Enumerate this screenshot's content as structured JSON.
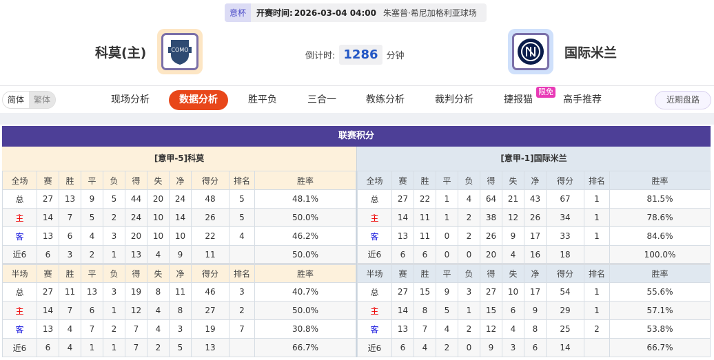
{
  "header": {
    "league": "意杯",
    "time_label": "开赛时间:",
    "time": "2026-03-04 04:00",
    "venue": "朱塞普·希尼加格利亚球场"
  },
  "home": {
    "name": "科莫(主)",
    "logo_text": "COMO",
    "accent": "#fde6c4"
  },
  "away": {
    "name": "国际米兰",
    "accent": "#cfe0fb"
  },
  "countdown": {
    "label": "倒计时:",
    "value": "1286",
    "unit": "分钟"
  },
  "nav": {
    "lang": [
      "简体",
      "繁体"
    ],
    "items": [
      "现场分析",
      "数据分析",
      "胜平负",
      "三合一",
      "教练分析",
      "裁判分析",
      "捷报猫",
      "高手推荐"
    ],
    "active": 1,
    "badge": "限免",
    "recent": "近期盘路"
  },
  "table": {
    "title": "联赛积分",
    "header_full": [
      "全场",
      "赛",
      "胜",
      "平",
      "负",
      "得",
      "失",
      "净",
      "得分",
      "排名",
      "胜率"
    ],
    "header_half": [
      "半场",
      "赛",
      "胜",
      "平",
      "负",
      "得",
      "失",
      "净",
      "得分",
      "排名",
      "胜率"
    ],
    "home": {
      "label": "[意甲-5]科莫",
      "full": [
        [
          "总",
          "27",
          "13",
          "9",
          "5",
          "44",
          "20",
          "24",
          "48",
          "5",
          "48.1%"
        ],
        [
          "主",
          "14",
          "7",
          "5",
          "2",
          "24",
          "10",
          "14",
          "26",
          "5",
          "50.0%"
        ],
        [
          "客",
          "13",
          "6",
          "4",
          "3",
          "20",
          "10",
          "10",
          "22",
          "4",
          "46.2%"
        ],
        [
          "近6",
          "6",
          "3",
          "2",
          "1",
          "13",
          "4",
          "9",
          "11",
          "",
          "50.0%"
        ]
      ],
      "half": [
        [
          "总",
          "27",
          "11",
          "13",
          "3",
          "19",
          "8",
          "11",
          "46",
          "3",
          "40.7%"
        ],
        [
          "主",
          "14",
          "7",
          "6",
          "1",
          "12",
          "4",
          "8",
          "27",
          "2",
          "50.0%"
        ],
        [
          "客",
          "13",
          "4",
          "7",
          "2",
          "7",
          "4",
          "3",
          "19",
          "7",
          "30.8%"
        ],
        [
          "近6",
          "6",
          "4",
          "1",
          "1",
          "7",
          "2",
          "5",
          "13",
          "",
          "66.7%"
        ]
      ]
    },
    "away": {
      "label": "[意甲-1]国际米兰",
      "full": [
        [
          "总",
          "27",
          "22",
          "1",
          "4",
          "64",
          "21",
          "43",
          "67",
          "1",
          "81.5%"
        ],
        [
          "主",
          "14",
          "11",
          "1",
          "2",
          "38",
          "12",
          "26",
          "34",
          "1",
          "78.6%"
        ],
        [
          "客",
          "13",
          "11",
          "0",
          "2",
          "26",
          "9",
          "17",
          "33",
          "1",
          "84.6%"
        ],
        [
          "近6",
          "6",
          "6",
          "0",
          "0",
          "20",
          "4",
          "16",
          "18",
          "",
          "100.0%"
        ]
      ],
      "half": [
        [
          "总",
          "27",
          "15",
          "9",
          "3",
          "27",
          "10",
          "17",
          "54",
          "1",
          "55.6%"
        ],
        [
          "主",
          "14",
          "8",
          "5",
          "1",
          "15",
          "6",
          "9",
          "29",
          "1",
          "57.1%"
        ],
        [
          "客",
          "13",
          "7",
          "4",
          "2",
          "12",
          "4",
          "8",
          "25",
          "2",
          "53.8%"
        ],
        [
          "近6",
          "6",
          "4",
          "2",
          "0",
          "9",
          "3",
          "6",
          "14",
          "",
          "66.7%"
        ]
      ]
    }
  }
}
